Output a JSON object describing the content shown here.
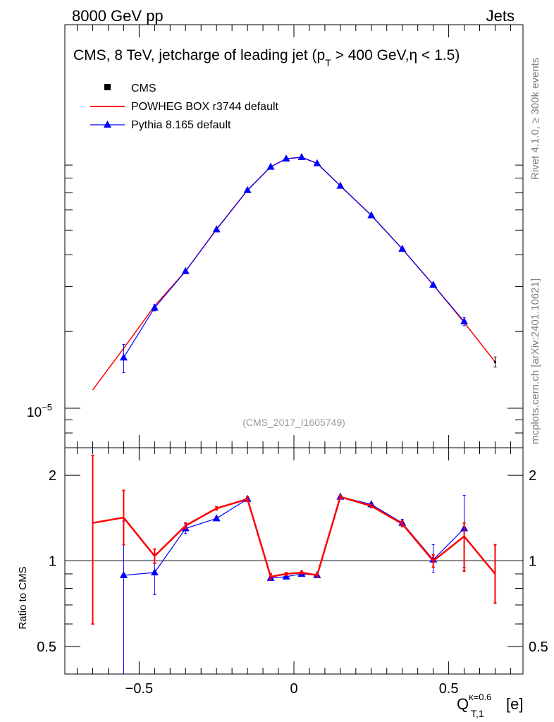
{
  "header": {
    "left_label": "8000 GeV pp",
    "right_label": "Jets",
    "side_label_top": "Rivet 4.1.0, ≥ 300k events",
    "side_label_bottom": "mcplots.cern.ch [arXiv:2401.10621]"
  },
  "chart_data": [
    {
      "type": "line",
      "panel": "main",
      "title_prefix": "CMS, 8 TeV, jetcharge of leading jet (p",
      "title_sub": "T",
      "title_suffix": " > 400 GeV,η < 1.5)",
      "watermark": "(CMS_2017_I1605749)",
      "yscale": "log",
      "xlim": [
        -0.74,
        0.74
      ],
      "ylim": [
        7e-06,
        0.00032
      ],
      "ytick_label": "10",
      "ytick_exp": "−5",
      "legend_position": "top-left",
      "series": [
        {
          "name": "CMS",
          "color": "#000000",
          "marker": "square",
          "x": [
            0.65
          ],
          "y": [
            1.52e-05
          ],
          "err": [
            7e-07
          ]
        },
        {
          "name": "POWHEG BOX r3744 default",
          "color": "#ff0000",
          "marker": "none",
          "x": [
            -0.65,
            -0.55,
            -0.45,
            -0.35,
            -0.25,
            -0.15,
            -0.075,
            -0.025,
            0.025,
            0.075,
            0.15,
            0.25,
            0.35,
            0.45,
            0.55,
            0.65
          ],
          "y": [
            1.18e-05,
            1.72e-05,
            2.52e-05,
            3.45e-05,
            5.04e-05,
            7.17e-05,
            8.86e-05,
            9.53e-05,
            9.66e-05,
            9.14e-05,
            7.46e-05,
            5.72e-05,
            4.22e-05,
            3.05e-05,
            2.17e-05,
            1.52e-05
          ]
        },
        {
          "name": "Pythia 8.165 default",
          "color": "#0000ff",
          "marker": "triangle",
          "x": [
            -0.55,
            -0.45,
            -0.35,
            -0.25,
            -0.15,
            -0.075,
            -0.025,
            0.025,
            0.075,
            0.15,
            0.25,
            0.35,
            0.45,
            0.55
          ],
          "y": [
            1.58e-05,
            2.48e-05,
            3.45e-05,
            5.03e-05,
            7.17e-05,
            8.86e-05,
            9.53e-05,
            9.66e-05,
            9.14e-05,
            7.46e-05,
            5.71e-05,
            4.22e-05,
            3.05e-05,
            2.19e-05
          ],
          "err": [
            2e-06,
            7e-07,
            0,
            0,
            0,
            0,
            0,
            0,
            0,
            0,
            0,
            0,
            0,
            8e-07
          ]
        }
      ]
    },
    {
      "type": "line",
      "panel": "ratio",
      "ylabel": "Ratio to CMS",
      "xlabel_main": "Q",
      "xlabel_sub": "T,1",
      "xlabel_sup": "κ=0.6",
      "xlabel_unit": "[e]",
      "xlim": [
        -0.74,
        0.74
      ],
      "ylim": [
        0.4,
        2.5
      ],
      "yscale": "log",
      "yticks": [
        0.5,
        1,
        2
      ],
      "ytick_labels": [
        "0.5",
        "1",
        "2"
      ],
      "xticks": [
        -0.5,
        0,
        0.5
      ],
      "xtick_labels": [
        "−0.5",
        "0",
        "0.5"
      ],
      "reference_line": 1,
      "series": [
        {
          "name": "POWHEG BOX r3744 default",
          "color": "#ff0000",
          "x": [
            -0.65,
            -0.55,
            -0.45,
            -0.35,
            -0.25,
            -0.15,
            -0.075,
            -0.025,
            0.025,
            0.075,
            0.15,
            0.25,
            0.35,
            0.45,
            0.55,
            0.65
          ],
          "y": [
            1.36,
            1.42,
            1.04,
            1.33,
            1.53,
            1.65,
            0.88,
            0.9,
            0.91,
            0.89,
            1.68,
            1.56,
            1.35,
            1.0,
            1.22,
            0.9
          ],
          "err_low": [
            0.76,
            0.28,
            0.06,
            0.03,
            0.02,
            0.03,
            0.02,
            0.01,
            0.01,
            0.01,
            0.02,
            0.02,
            0.03,
            0.05,
            0.3,
            0.19
          ],
          "err_high": [
            0.99,
            0.35,
            0.06,
            0.03,
            0.02,
            0.03,
            0.02,
            0.01,
            0.01,
            0.01,
            0.02,
            0.02,
            0.03,
            0.05,
            0.14,
            0.24
          ]
        },
        {
          "name": "Pythia 8.165 default",
          "color": "#0000ff",
          "x": [
            -0.55,
            -0.45,
            -0.35,
            -0.25,
            -0.15,
            -0.075,
            -0.025,
            0.025,
            0.075,
            0.15,
            0.25,
            0.35,
            0.45,
            0.55
          ],
          "y": [
            0.89,
            0.91,
            1.3,
            1.41,
            1.65,
            0.87,
            0.88,
            0.9,
            0.89,
            1.68,
            1.58,
            1.36,
            1.01,
            1.3
          ],
          "err_low": [
            0.49,
            0.15,
            0.05,
            0.02,
            0.02,
            0.01,
            0.01,
            0.01,
            0.01,
            0.02,
            0.02,
            0.04,
            0.1,
            0.35
          ],
          "err_high": [
            0.49,
            0.15,
            0.05,
            0.02,
            0.02,
            0.01,
            0.01,
            0.01,
            0.01,
            0.02,
            0.02,
            0.04,
            0.13,
            0.4
          ]
        }
      ]
    }
  ]
}
